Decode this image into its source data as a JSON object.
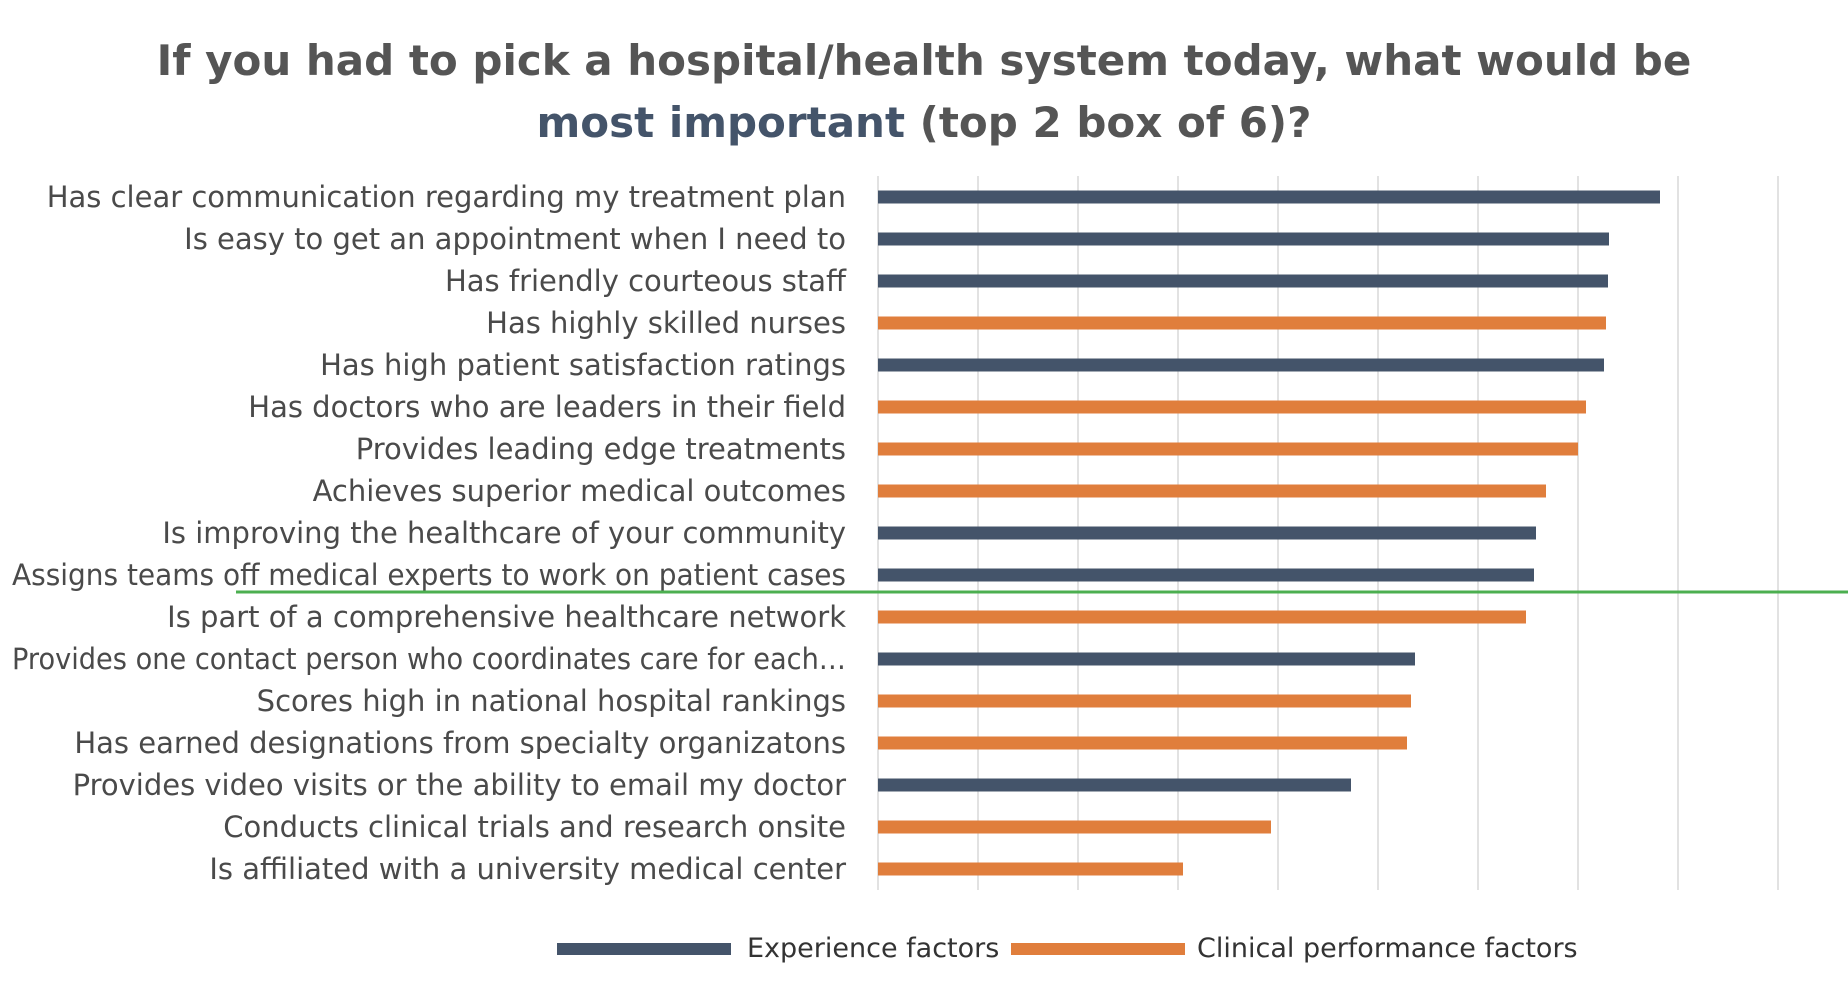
{
  "title": {
    "line1": "If you had to pick a hospital/health system today, what would be",
    "accent": "most important",
    "rest": " (top 2 box of 6)?"
  },
  "colors": {
    "experience": "#44546a",
    "clinical": "#e07e3c",
    "cutoff_line": "#4caf50",
    "gridline": "#d9d9d9",
    "title_text": "#555555"
  },
  "legend": {
    "experience_label": "Experience factors",
    "clinical_label": "Clinical performance factors"
  },
  "chart_data": {
    "type": "bar",
    "orientation": "horizontal",
    "categories": [
      "Has clear communication regarding my treatment plan",
      "Is easy to get an appointment when I need to",
      "Has friendly courteous staff",
      "Has highly skilled nurses",
      "Has high patient satisfaction ratings",
      "Has doctors who are leaders in their field",
      "Provides leading edge treatments",
      "Achieves superior medical outcomes",
      "Is improving the healthcare of your community",
      "Assigns teams off medical experts to work on patient cases",
      "Is part of a comprehensive healthcare network",
      "Provides one contact person who coordinates care for each…",
      "Scores high in national hospital rankings",
      "Has earned designations from specialty organizatons",
      "Provides video visits or the ability to email my doctor",
      "Conducts clinical trials and research onsite",
      "Is affiliated with a university medical center"
    ],
    "values": [
      78.2,
      73.1,
      73.0,
      72.8,
      72.6,
      70.8,
      70.0,
      66.8,
      65.8,
      65.6,
      64.8,
      53.7,
      53.3,
      52.9,
      47.3,
      39.3,
      30.5
    ],
    "groups": [
      "experience",
      "experience",
      "experience",
      "clinical",
      "experience",
      "clinical",
      "clinical",
      "clinical",
      "experience",
      "experience",
      "clinical",
      "experience",
      "clinical",
      "clinical",
      "experience",
      "clinical",
      "clinical"
    ],
    "series": [
      {
        "name": "Experience factors",
        "key": "experience"
      },
      {
        "name": "Clinical performance factors",
        "key": "clinical"
      }
    ],
    "xlim": [
      0,
      90
    ],
    "grid": true,
    "axis_labels_shown": false,
    "legend_position": "bottom",
    "cutoff_after_index": 9
  }
}
